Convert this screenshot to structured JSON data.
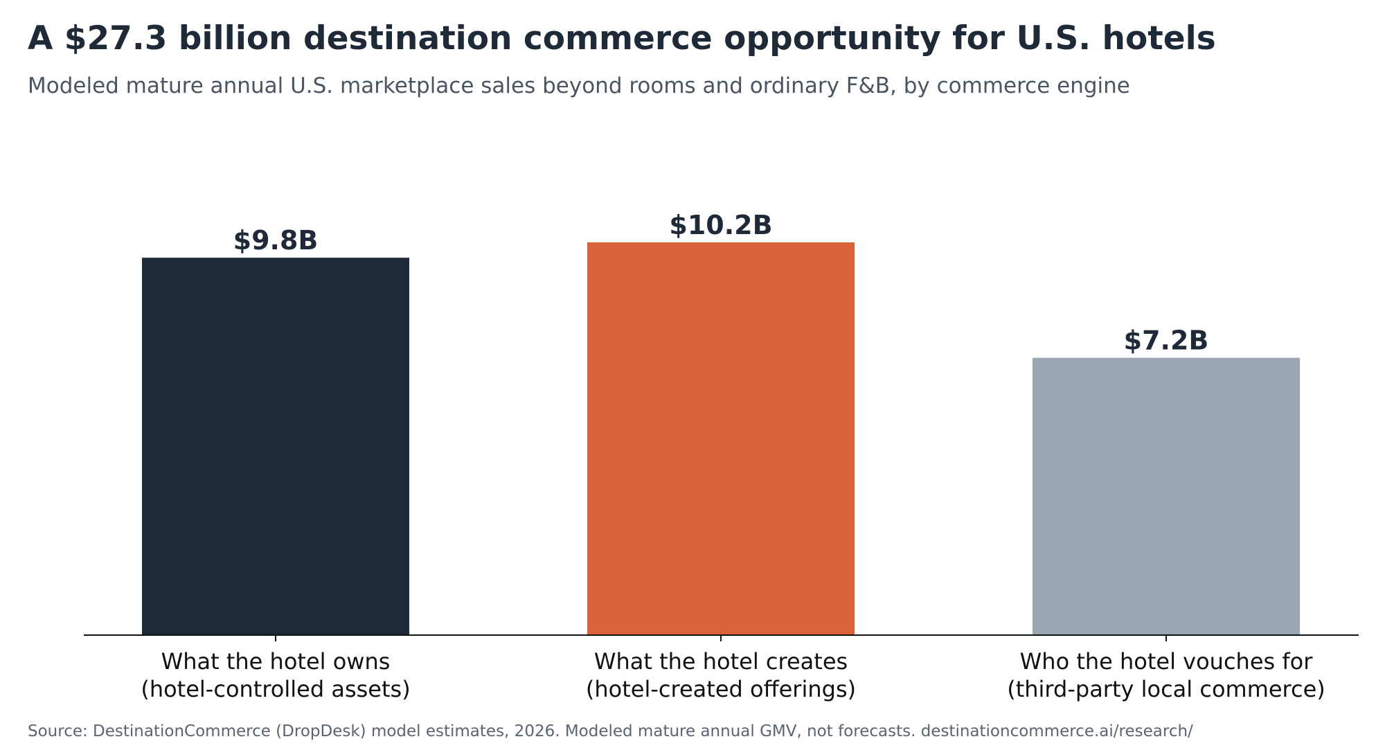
{
  "header": {
    "title": "A $27.3 billion destination commerce opportunity for U.S. hotels",
    "subtitle": "Modeled mature annual U.S. marketplace sales beyond rooms and ordinary F&B, by commerce engine"
  },
  "footer": {
    "source": "Source: DestinationCommerce (DropDesk) model estimates, 2026. Modeled mature annual GMV, not forecasts. destinationcommerce.ai/research/"
  },
  "chart_data": {
    "type": "bar",
    "title": "A $27.3 billion destination commerce opportunity for U.S. hotels",
    "subtitle": "Modeled mature annual U.S. marketplace sales beyond rooms and ordinary F&B, by commerce engine",
    "categories": [
      [
        "What the hotel owns",
        "(hotel-controlled assets)"
      ],
      [
        "What the hotel creates",
        "(hotel-created offerings)"
      ],
      [
        "Who the hotel vouches for",
        "(third-party local commerce)"
      ]
    ],
    "values": [
      9.8,
      10.2,
      7.2
    ],
    "value_labels": [
      "$9.8B",
      "$10.2B",
      "$7.2B"
    ],
    "colors": [
      "#1f2a38",
      "#d9643b",
      "#9aa7b2"
    ],
    "unit": "USD billions",
    "ylim": [
      0,
      12.0
    ],
    "xlabel": "",
    "ylabel": "",
    "grid": false,
    "legend": "none"
  }
}
